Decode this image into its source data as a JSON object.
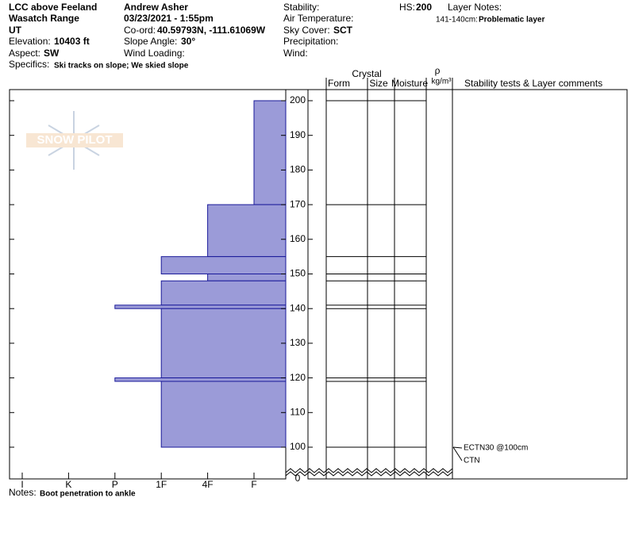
{
  "header": {
    "location": "LCC above Feeland",
    "range": "Wasatch Range",
    "state": "UT",
    "elevation_label": "Elevation:",
    "elevation": "10403 ft",
    "aspect_label": "Aspect:",
    "aspect": "SW",
    "specifics_label": "Specifics:",
    "specifics": "Ski tracks on slope; We skied slope",
    "observer": "Andrew Asher",
    "datetime": "03/23/2021 - 1:55pm",
    "coord_label": "Co-ord:",
    "coord": "40.59793N, -111.61069W",
    "slope_label": "Slope Angle:",
    "slope": "30°",
    "wind_loading": "Wind Loading:",
    "stability": "Stability:",
    "air_temp": "Air Temperature:",
    "sky_label": "Sky Cover:",
    "sky": "SCT",
    "precipitation": "Precipitation:",
    "wind": "Wind:",
    "hs_label": "HS:",
    "hs": "200",
    "layer_notes_label": "Layer Notes:",
    "layer_note_range": "141-140cm:",
    "layer_note": "Problematic layer"
  },
  "logo": "SNOW PILOT",
  "columns": {
    "crystal": "Crystal",
    "form": "Form",
    "size": "Size",
    "moisture": "Moisture",
    "rho": "ρ",
    "density_unit": "kg/m³",
    "comments": "Stability tests & Layer comments"
  },
  "notes_label": "Notes:",
  "notes": "Boot penetration to ankle",
  "chart_data": {
    "type": "hardness-profile",
    "categories": [
      "I",
      "K",
      "P",
      "1F",
      "4F",
      "F"
    ],
    "ylim": [
      100,
      200
    ],
    "axis_break": true,
    "yticks": [
      0,
      100,
      110,
      120,
      130,
      140,
      150,
      160,
      170,
      180,
      190,
      200
    ],
    "color": "#9b9bd8",
    "edge_color": "#1a1a9a",
    "layers": [
      {
        "top": 200,
        "bottom": 170,
        "hardness": "F"
      },
      {
        "top": 170,
        "bottom": 155,
        "hardness": "4F"
      },
      {
        "top": 155,
        "bottom": 150,
        "hardness": "1F"
      },
      {
        "top": 150,
        "bottom": 148,
        "hardness": "4F"
      },
      {
        "top": 148,
        "bottom": 141,
        "hardness": "1F"
      },
      {
        "top": 141,
        "bottom": 140,
        "hardness": "P"
      },
      {
        "top": 140,
        "bottom": 120,
        "hardness": "1F"
      },
      {
        "top": 120,
        "bottom": 119,
        "hardness": "P"
      },
      {
        "top": 119,
        "bottom": 100,
        "hardness": "1F"
      }
    ],
    "tests": [
      {
        "label": "ECTN30 @100cm",
        "depth": 100
      },
      {
        "label": "CTN",
        "depth": 100
      }
    ]
  }
}
